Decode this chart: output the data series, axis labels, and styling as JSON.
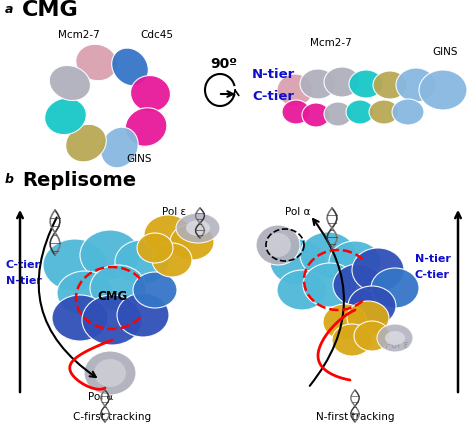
{
  "panel_a_label": "a",
  "panel_b_label": "b",
  "cmg_title": "CMG",
  "replisome_title": "Replisome",
  "label_mcm27_top": "Mcm2-7",
  "label_cdc45": "Cdc45",
  "label_gins_bottom": "GINS",
  "label_mcm27_side": "Mcm2-7",
  "label_gins_side": "GINS",
  "label_ntier": "N-tier",
  "label_ctier": "C-tier",
  "rotation_label": "90º",
  "label_pole_left": "Pol ε",
  "label_pola_left": "Pol α",
  "label_pola_right": "Pol α",
  "label_pole_right": "Pol ε",
  "label_cmg": "CMG",
  "label_ntier_left": "N-tier",
  "label_ctier_left": "C-tier",
  "label_ntier_right": "N-tier",
  "label_ctier_right": "C-tier",
  "label_cfirst": "C-first tracking",
  "label_nfirst": "N-first tracking",
  "colors": {
    "blue_dark": "#3575c8",
    "blue_label": "#1010cc",
    "pink_light": "#d9a0b0",
    "magenta": "#e8189a",
    "cyan": "#18c8c8",
    "light_blue_gins": "#88b8e0",
    "gold": "#b8a855",
    "silver": "#b0b0be",
    "yellow_gold": "#d8a818",
    "purple_blue": "#3050b8",
    "cyan_tier": "#50b8d8",
    "white": "#ffffff",
    "black": "#000000",
    "red": "#cc0000",
    "background": "#ffffff",
    "dna_dark": "#383838",
    "dna_light": "#787878"
  }
}
